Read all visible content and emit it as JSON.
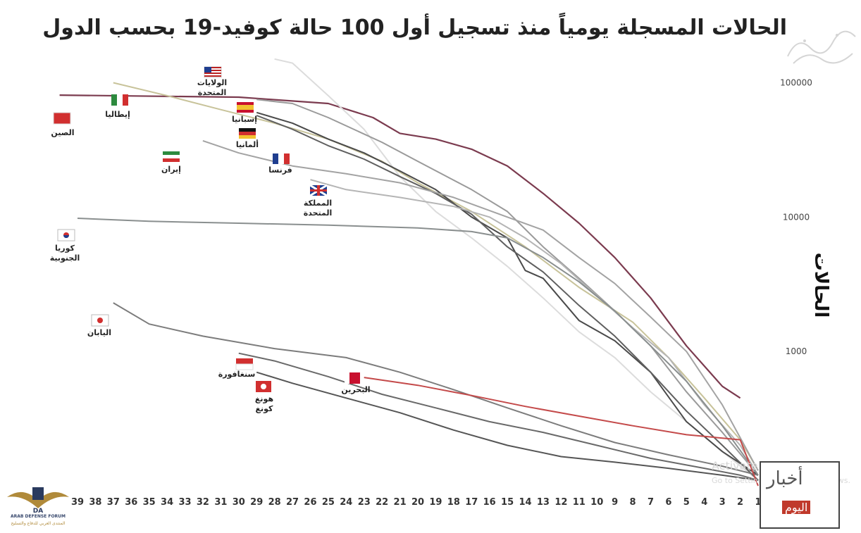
{
  "title": "الحالات المسجلة يومياً منذ تسجيل أول 100 حالة كوفيد-19 بحسب الدول",
  "chart_data": {
    "type": "line",
    "title": "الحالات المسجلة يومياً منذ تسجيل أول 100 حالة كوفيد-19 بحسب الدول",
    "xlabel": "",
    "ylabel": "الحالات",
    "y_scale": "log",
    "ylim": [
      100,
      200000
    ],
    "x_ticks": [
      39,
      38,
      37,
      36,
      35,
      34,
      33,
      32,
      31,
      30,
      29,
      28,
      27,
      26,
      25,
      24,
      23,
      22,
      21,
      20,
      19,
      18,
      17,
      16,
      15,
      14,
      13,
      12,
      11,
      10,
      9,
      8,
      7,
      6,
      5,
      4,
      3,
      2,
      1
    ],
    "y_ticks": [
      {
        "value": 100000,
        "label": "100000"
      },
      {
        "value": 10000,
        "label": "10000"
      },
      {
        "value": 1000,
        "label": "1000"
      }
    ],
    "grid": false,
    "series": [
      {
        "name": "الصين",
        "color": "#7b3b4f",
        "flag": "china",
        "x": [
          40,
          30,
          25,
          22.5,
          21,
          19,
          17,
          15,
          13,
          11,
          9,
          7,
          5,
          3,
          2
        ],
        "y": [
          80800,
          78000,
          70000,
          55000,
          42000,
          38000,
          32000,
          24000,
          15000,
          9000,
          5000,
          2500,
          1100,
          550,
          450
        ]
      },
      {
        "name": "الولايات المتحدة",
        "color": "#dcdcdc",
        "flag": "usa",
        "x": [
          28,
          27,
          25,
          23,
          21,
          19,
          17,
          15,
          13,
          11,
          9,
          7,
          5,
          3,
          1
        ],
        "y": [
          150000,
          140000,
          80000,
          45000,
          20000,
          11000,
          7000,
          4300,
          2500,
          1400,
          900,
          500,
          300,
          180,
          110
        ]
      },
      {
        "name": "إيطاليا",
        "color": "#c8c39a",
        "flag": "italy",
        "x": [
          37,
          34,
          31,
          28,
          25,
          22,
          20,
          17,
          14,
          11,
          8,
          6,
          4,
          2,
          1
        ],
        "y": [
          100000,
          80000,
          63000,
          50000,
          38000,
          26000,
          18000,
          11000,
          6000,
          3000,
          1650,
          900,
          450,
          220,
          130
        ]
      },
      {
        "name": "إسبانيا",
        "color": "#9a9a9a",
        "flag": "spain",
        "x": [
          29,
          27,
          25,
          22,
          20,
          17,
          15,
          13,
          11,
          9,
          7,
          5,
          3,
          1
        ],
        "y": [
          75000,
          70000,
          55000,
          36000,
          26000,
          16000,
          11000,
          6000,
          3500,
          2000,
          1100,
          500,
          250,
          120
        ]
      },
      {
        "name": "ألمانيا",
        "color": "#4a4a4a",
        "flag": "germany",
        "x": [
          29,
          27,
          25,
          23,
          21,
          19,
          17,
          15,
          14,
          13,
          11,
          9,
          7,
          5,
          3,
          1
        ],
        "y": [
          60000,
          50000,
          38000,
          30000,
          22000,
          16000,
          10000,
          7000,
          4000,
          3500,
          1700,
          1200,
          700,
          300,
          180,
          120
        ]
      },
      {
        "name": "فرنسا",
        "color": "#5f5f5f",
        "flag": "france",
        "x": [
          29,
          27,
          25,
          23,
          21,
          19,
          17,
          15,
          13,
          11,
          9,
          7,
          5,
          3,
          1
        ],
        "y": [
          57000,
          45000,
          34000,
          27000,
          20000,
          15000,
          10500,
          6000,
          3900,
          2200,
          1300,
          700,
          360,
          200,
          110
        ]
      },
      {
        "name": "إيران",
        "color": "#a3a3a3",
        "flag": "iran",
        "x": [
          32,
          30,
          27,
          24,
          21,
          18,
          15,
          13,
          11,
          9,
          7,
          5,
          3,
          1
        ],
        "y": [
          37000,
          30000,
          24000,
          21000,
          18000,
          14000,
          10000,
          8000,
          5000,
          3200,
          1800,
          1000,
          400,
          130
        ]
      },
      {
        "name": "المملكة المتحدة",
        "color": "#b5b5b5",
        "flag": "uk",
        "x": [
          26,
          24,
          21,
          18,
          16,
          14,
          12,
          10,
          8,
          6,
          4,
          2,
          1
        ],
        "y": [
          19000,
          16000,
          14000,
          12000,
          10000,
          7000,
          4500,
          2600,
          1500,
          900,
          400,
          200,
          120
        ]
      },
      {
        "name": "كوريا الجنوبية",
        "color": "#8a8f8f",
        "flag": "korea",
        "x": [
          39,
          35,
          30,
          25,
          20,
          17,
          15,
          13,
          11,
          9,
          7,
          5,
          3,
          1
        ],
        "y": [
          9800,
          9300,
          9000,
          8700,
          8300,
          7800,
          7000,
          5000,
          3300,
          2000,
          1100,
          600,
          280,
          120
        ]
      },
      {
        "name": "اليابان",
        "color": "#7c7c7c",
        "flag": "japan",
        "x": [
          37,
          35,
          32,
          28,
          24,
          21,
          18,
          15,
          12,
          9,
          6,
          3,
          1
        ],
        "y": [
          2300,
          1600,
          1300,
          1050,
          900,
          700,
          520,
          380,
          280,
          210,
          170,
          140,
          120
        ]
      },
      {
        "name": "سنغافورة",
        "color": "#696969",
        "flag": "singapore",
        "x": [
          30,
          28,
          25,
          22,
          19,
          16,
          13,
          10,
          7,
          4,
          2,
          1
        ],
        "y": [
          970,
          850,
          650,
          480,
          380,
          300,
          250,
          200,
          160,
          135,
          120,
          110
        ]
      },
      {
        "name": "هونغ كونغ",
        "color": "#555555",
        "flag": "hongkong",
        "x": [
          29,
          27,
          24,
          21,
          18,
          15,
          12,
          9,
          6,
          3,
          1
        ],
        "y": [
          700,
          580,
          450,
          350,
          260,
          200,
          165,
          150,
          135,
          120,
          110
        ]
      },
      {
        "name": "البحرين",
        "color": "#c44a4a",
        "flag": "bahrain",
        "x": [
          23,
          20,
          17,
          14,
          11,
          8,
          5,
          2,
          1
        ],
        "y": [
          640,
          560,
          470,
          390,
          330,
          280,
          240,
          220,
          100
        ]
      }
    ]
  },
  "labels": {
    "china": "الصين",
    "usa_1": "الولايات",
    "usa_2": "المتحدة",
    "italy": "إيطاليا",
    "spain": "إسبانيا",
    "germany": "ألمانيا",
    "france": "فرنسا",
    "iran": "إيران",
    "uk_1": "المملكة",
    "uk_2": "المتحدة",
    "korea_1": "كوريا",
    "korea_2": "الجنوبية",
    "japan": "اليابان",
    "singapore": "سنغافورة",
    "hongkong_1": "هونغ",
    "hongkong_2": "كونغ",
    "bahrain": "البحرين"
  },
  "overlay": {
    "activate_1": "Activate Windows",
    "activate_2": "Go to Settings to activate Windows."
  },
  "logo": {
    "text_en": "ARAB DEFENSE FORUM",
    "text_ar": "المنتدى العربي للدفاع والتسليح"
  },
  "brand": {
    "line1": "أخبار",
    "line2": "اليوم"
  },
  "colors": {
    "flag_red": "#d12f2f",
    "flag_green": "#2d8a3e",
    "flag_blue": "#1f3e8f",
    "flag_yellow": "#f2c230"
  }
}
